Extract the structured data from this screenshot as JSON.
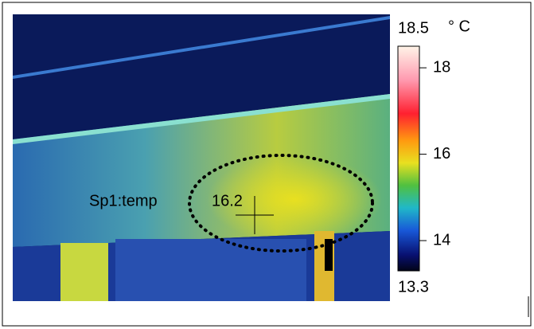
{
  "scale": {
    "max": 18.5,
    "unit": "° C",
    "min": 13.3,
    "ticks": [
      14,
      16,
      18
    ]
  },
  "spot": {
    "label": "Sp1:temp",
    "value": 16.2
  }
}
